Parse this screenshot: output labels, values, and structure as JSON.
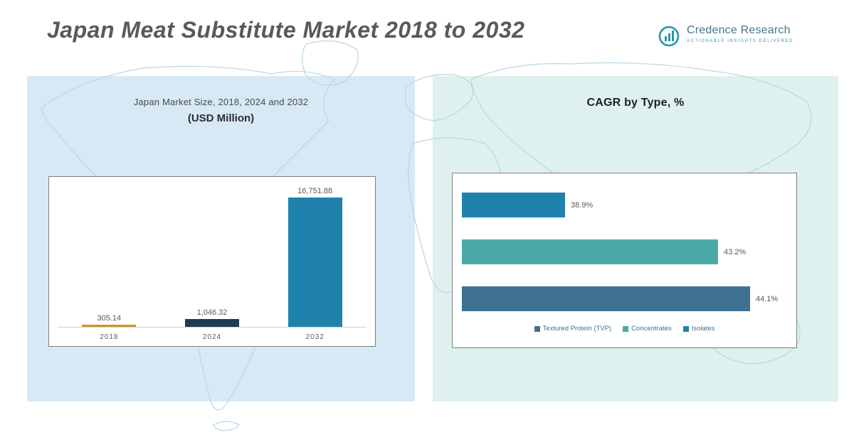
{
  "page": {
    "title": "Japan Meat Substitute Market 2018 to 2032"
  },
  "logo": {
    "name": "Credence Research",
    "tagline": "Actionable Insights Delivered",
    "accent_color": "#2496ad"
  },
  "left_panel": {
    "heading_line1": "Japan Market Size, 2018, 2024 and 2032",
    "heading_line2": "(USD Million)"
  },
  "right_panel": {
    "heading": "CAGR by Type, %"
  },
  "chart_data": [
    {
      "type": "bar",
      "orientation": "vertical",
      "title": "Japan Market Size, 2018, 2024 and 2032 (USD Million)",
      "categories": [
        "2018",
        "2024",
        "2032"
      ],
      "values": [
        305.14,
        1046.32,
        16751.88
      ],
      "value_labels": [
        "305.14",
        "1,046.32",
        "16,751.88"
      ],
      "bar_colors": [
        "#c69b26",
        "#203a4f",
        "#1f82ad"
      ],
      "ylim": [
        0,
        18000
      ],
      "grid": false,
      "legend_position": "none"
    },
    {
      "type": "bar",
      "orientation": "horizontal",
      "title": "CAGR by Type, %",
      "categories": [
        "Isolates",
        "Concentrates",
        "Textured Protein (TVP)"
      ],
      "values": [
        38.9,
        43.2,
        44.1
      ],
      "value_labels": [
        "38.9%",
        "43.2%",
        "44.1%"
      ],
      "bar_colors": [
        "#1f82ad",
        "#4aa9a6",
        "#3f7291"
      ],
      "xlim": [
        36,
        45
      ],
      "grid": false,
      "legend_position": "bottom",
      "legend": [
        {
          "label": "Textured Protein (TVP)",
          "color": "#3f7291"
        },
        {
          "label": "Concentrates",
          "color": "#4aa9a6"
        },
        {
          "label": "Isolates",
          "color": "#1f82ad"
        }
      ]
    }
  ]
}
